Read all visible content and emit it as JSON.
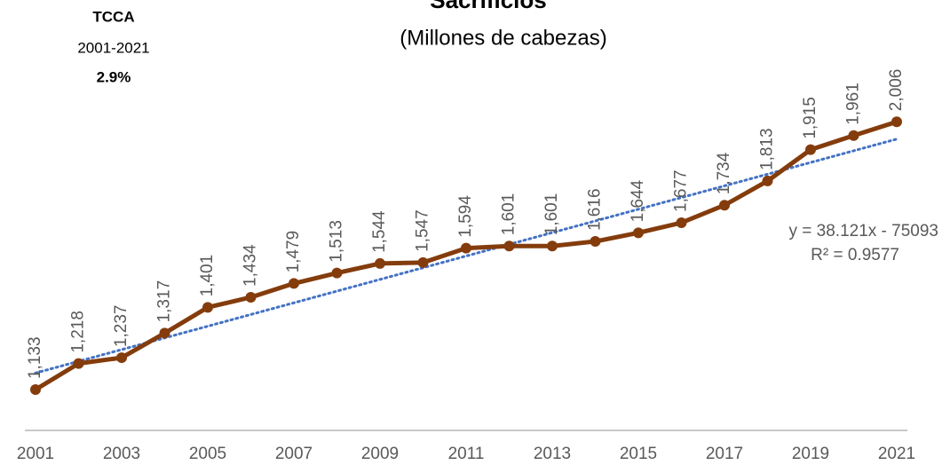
{
  "chart_data": {
    "type": "line",
    "title": "Sacrificios",
    "subtitle": "(Millones de cabezas)",
    "annotation": {
      "title": "TCCA",
      "period": "2001-2021",
      "value": "2.9%"
    },
    "x": [
      2001,
      2002,
      2003,
      2004,
      2005,
      2006,
      2007,
      2008,
      2009,
      2010,
      2011,
      2012,
      2013,
      2014,
      2015,
      2016,
      2017,
      2018,
      2019,
      2020,
      2021
    ],
    "xlim": [
      2001,
      2021
    ],
    "xticks": [
      2001,
      2003,
      2005,
      2007,
      2009,
      2011,
      2013,
      2015,
      2017,
      2019,
      2021
    ],
    "ylim": [
      1000,
      2400
    ],
    "series": [
      {
        "name": "Sacrificios",
        "color": "#843c0c",
        "values": [
          1133,
          1218,
          1237,
          1317,
          1401,
          1434,
          1479,
          1513,
          1544,
          1547,
          1594,
          1601,
          1601,
          1616,
          1644,
          1677,
          1734,
          1813,
          1915,
          1961,
          2006
        ],
        "value_labels": [
          "1,133",
          "1,218",
          "1,237",
          "1,317",
          "1,401",
          "1,434",
          "1,479",
          "1,513",
          "1,544",
          "1,547",
          "1,594",
          "1,601",
          "1,601",
          "1,616",
          "1,644",
          "1,677",
          "1,734",
          "1,813",
          "1,915",
          "1,961",
          "2,006"
        ]
      }
    ],
    "trendline": {
      "color": "#4472c4",
      "slope": 38.121,
      "intercept": -75093,
      "equation": "y = 38.121x - 75093",
      "r2": "R² = 0.9577"
    }
  }
}
